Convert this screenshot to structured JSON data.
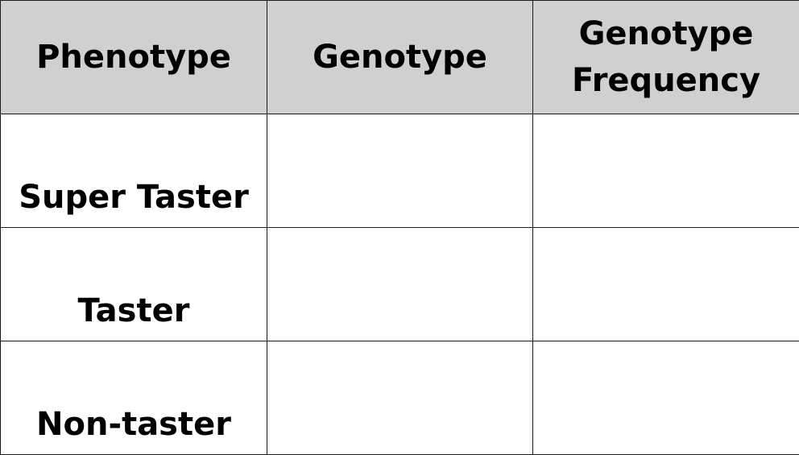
{
  "table": {
    "headers": [
      "Phenotype",
      "Genotype",
      "Genotype Frequency"
    ],
    "header_lines": {
      "col3_line1": "Genotype",
      "col3_line2": "Frequency"
    },
    "rows": [
      {
        "phenotype": "Super Taster",
        "genotype": "",
        "frequency": ""
      },
      {
        "phenotype": "Taster",
        "genotype": "",
        "frequency": ""
      },
      {
        "phenotype": "Non-taster",
        "genotype": "",
        "frequency": ""
      }
    ]
  },
  "colors": {
    "header_background": "#d0d0d0",
    "border": "#1a1a1a",
    "text": "#000000"
  }
}
